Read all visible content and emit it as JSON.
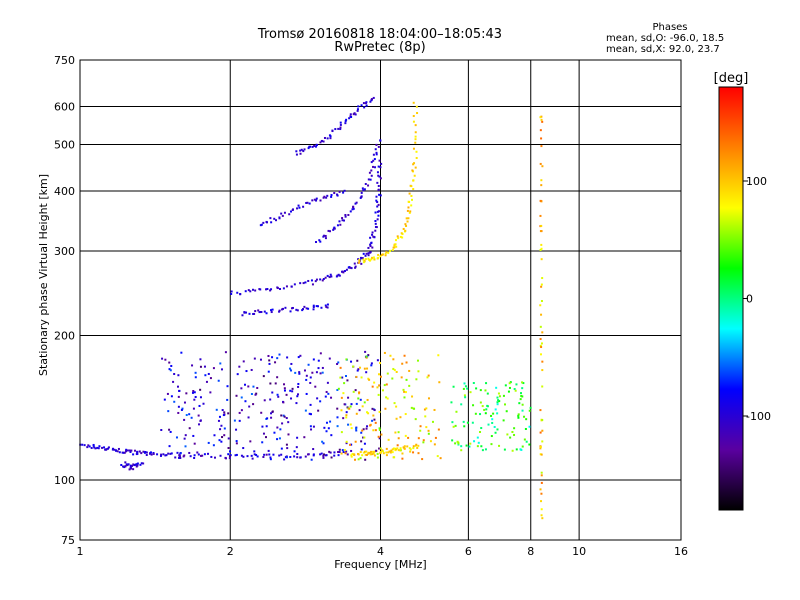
{
  "chart_data": {
    "type": "scatter",
    "title": "Tromsø 20160818 18:04:00–18:05:43",
    "subtitle": "RwPretec (8p)",
    "xlabel": "Frequency [MHz]",
    "ylabel": "Stationary phase Virtual Height [km]",
    "x_scale": "log",
    "y_scale": "log",
    "xlim": [
      1,
      16
    ],
    "ylim": [
      75,
      750
    ],
    "x_ticks": [
      1,
      2,
      4,
      6,
      8,
      10,
      16
    ],
    "y_ticks": [
      75,
      100,
      200,
      300,
      400,
      500,
      600,
      750
    ],
    "grid": true,
    "stats": {
      "heading": "Phases",
      "o_line": "mean, sd,O: -96.0, 18.5",
      "x_line": "mean, sd,X:  92.0, 23.7"
    },
    "colorbar": {
      "label": "[deg]",
      "range": [
        -180,
        180
      ],
      "ticks": [
        -100,
        0,
        100
      ],
      "colors": [
        "#000000",
        "#5a00a0",
        "#0000ff",
        "#00ffff",
        "#00ff00",
        "#ffff00",
        "#ff8000",
        "#ff0000"
      ]
    },
    "series": [
      {
        "name": "O",
        "phase_deg": -100,
        "color": "#1a1aff",
        "traces": [
          {
            "f": [
              1.0,
              1.1,
              1.2,
              1.3,
              1.4,
              1.6,
              2.0,
              2.5,
              3.0,
              3.5
            ],
            "h": [
              118,
              117,
              115,
              114,
              113,
              113,
              112,
              112,
              113,
              114
            ]
          },
          {
            "f": [
              1.22,
              1.27,
              1.33
            ],
            "h": [
              108,
              106,
              108
            ]
          },
          {
            "f": [
              2.0,
              2.4,
              2.9,
              3.3,
              3.6,
              3.8,
              3.9,
              3.97,
              4.0
            ],
            "h": [
              245,
              250,
              258,
              268,
              282,
              300,
              335,
              390,
              470
            ]
          },
          {
            "f": [
              3.0,
              3.3,
              3.6,
              3.85,
              3.98
            ],
            "h": [
              315,
              340,
              380,
              440,
              520
            ]
          },
          {
            "f": [
              2.7,
              3.0,
              3.3,
              3.6,
              3.9
            ],
            "h": [
              480,
              500,
              540,
              590,
              630
            ]
          },
          {
            "f": [
              2.3,
              2.6,
              3.0,
              3.4
            ],
            "h": [
              340,
              360,
              385,
              400
            ]
          },
          {
            "f": [
              2.1,
              2.4,
              2.8,
              3.2
            ],
            "h": [
              222,
              225,
              228,
              230
            ]
          }
        ]
      },
      {
        "name": "X",
        "phase_deg": 92,
        "color": "#e8e800",
        "traces": [
          {
            "f": [
              3.6,
              3.9,
              4.2,
              4.45,
              4.6,
              4.68,
              4.7
            ],
            "h": [
              285,
              290,
              300,
              330,
              380,
              460,
              620
            ]
          },
          {
            "f": [
              3.5,
              3.8,
              4.1,
              4.4,
              4.8
            ],
            "h": [
              113,
              114,
              115,
              116,
              118
            ]
          }
        ]
      }
    ],
    "scatter_regions": [
      {
        "f_min": 1.45,
        "f_max": 4.0,
        "h_min": 110,
        "h_max": 185,
        "phase_deg": -100
      },
      {
        "f_min": 3.3,
        "f_max": 5.3,
        "h_min": 110,
        "h_max": 185,
        "phase_deg": 90
      },
      {
        "f_min": 5.5,
        "f_max": 8.0,
        "h_min": 115,
        "h_max": 160,
        "phase_deg": 20
      }
    ],
    "vertical_echo_lines": [
      {
        "f": 8.4,
        "h_min": 80,
        "h_max": 650,
        "phase_deg": 100
      }
    ]
  }
}
